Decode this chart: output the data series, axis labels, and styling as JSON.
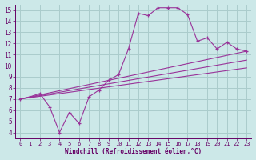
{
  "xlabel": "Windchill (Refroidissement éolien,°C)",
  "background_color": "#cce8e8",
  "grid_color": "#aacccc",
  "line_color": "#993399",
  "xlim": [
    -0.5,
    23.5
  ],
  "ylim": [
    3.5,
    15.5
  ],
  "xticks": [
    0,
    1,
    2,
    3,
    4,
    5,
    6,
    7,
    8,
    9,
    10,
    11,
    12,
    13,
    14,
    15,
    16,
    17,
    18,
    19,
    20,
    21,
    22,
    23
  ],
  "yticks": [
    4,
    5,
    6,
    7,
    8,
    9,
    10,
    11,
    12,
    13,
    14,
    15
  ],
  "series1_x": [
    0,
    1,
    2,
    3,
    4,
    5,
    6,
    7,
    8,
    9,
    10,
    11,
    12,
    13,
    14,
    15,
    16,
    17,
    18,
    19,
    20,
    21,
    22,
    23
  ],
  "series1_y": [
    7.0,
    7.2,
    7.5,
    6.3,
    4.0,
    5.8,
    4.8,
    7.2,
    7.8,
    8.7,
    9.2,
    11.5,
    14.7,
    14.5,
    15.2,
    15.2,
    15.2,
    14.6,
    12.2,
    12.5,
    11.5,
    12.1,
    11.5,
    11.3
  ],
  "series2_x": [
    0,
    23
  ],
  "series2_y": [
    7.0,
    11.3
  ],
  "series3_x": [
    0,
    23
  ],
  "series3_y": [
    7.0,
    10.5
  ],
  "series4_x": [
    0,
    23
  ],
  "series4_y": [
    7.0,
    9.8
  ]
}
